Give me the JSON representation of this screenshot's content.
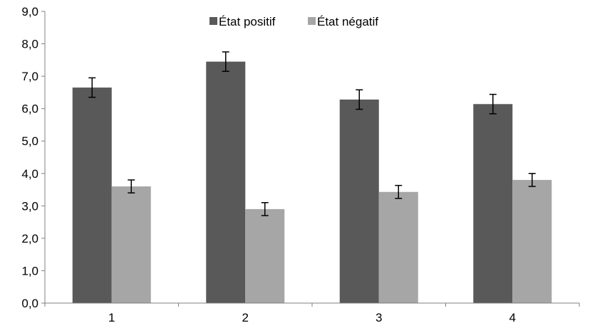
{
  "chart_data": {
    "type": "bar",
    "categories": [
      "1",
      "2",
      "3",
      "4"
    ],
    "series": [
      {
        "name": "État positif",
        "color": "#595959",
        "values": [
          6.65,
          7.45,
          6.28,
          6.14
        ],
        "errors": [
          0.3,
          0.3,
          0.3,
          0.3
        ]
      },
      {
        "name": "État négatif",
        "color": "#a6a6a6",
        "values": [
          3.6,
          2.9,
          3.43,
          3.8
        ],
        "errors": [
          0.2,
          0.2,
          0.2,
          0.2
        ]
      }
    ],
    "ylim": [
      0,
      9
    ],
    "yticks": [
      "0,0",
      "1,0",
      "2,0",
      "3,0",
      "4,0",
      "5,0",
      "6,0",
      "7,0",
      "8,0",
      "9,0"
    ],
    "grid": false,
    "legend_position": "top-center",
    "title": "",
    "xlabel": "",
    "ylabel": ""
  }
}
